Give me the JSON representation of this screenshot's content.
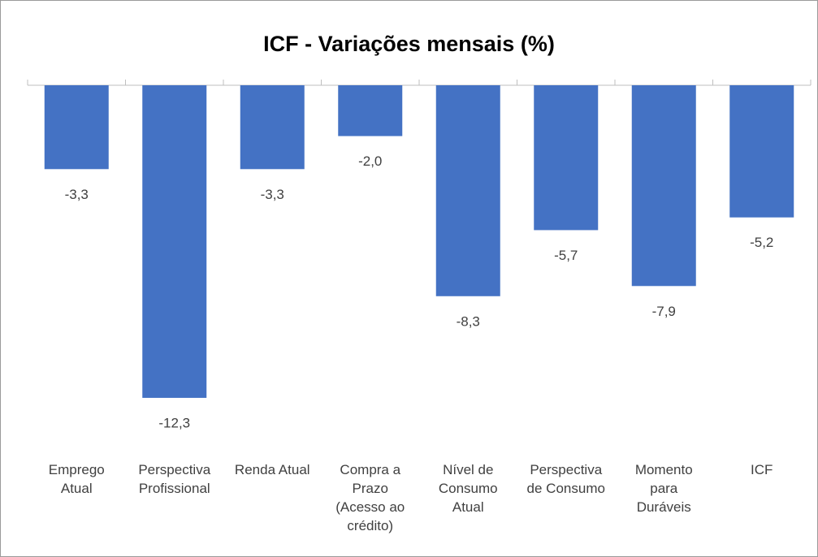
{
  "chart_data": {
    "type": "bar",
    "title": "ICF - Variações mensais (%)",
    "categories": [
      "Emprego Atual",
      "Perspectiva Profissional",
      "Renda Atual",
      "Compra a Prazo (Acesso ao crédito)",
      "Nível de Consumo Atual",
      "Perspectiva de Consumo",
      "Momento para Duráveis",
      "ICF"
    ],
    "values": [
      -3.3,
      -12.3,
      -3.3,
      -2.0,
      -8.3,
      -5.7,
      -7.9,
      -5.2
    ],
    "value_labels": [
      "-3,3",
      "-12,3",
      "-3,3",
      "-2,0",
      "-8,3",
      "-5,7",
      "-7,9",
      "-5,2"
    ],
    "color": "#4472c4"
  }
}
